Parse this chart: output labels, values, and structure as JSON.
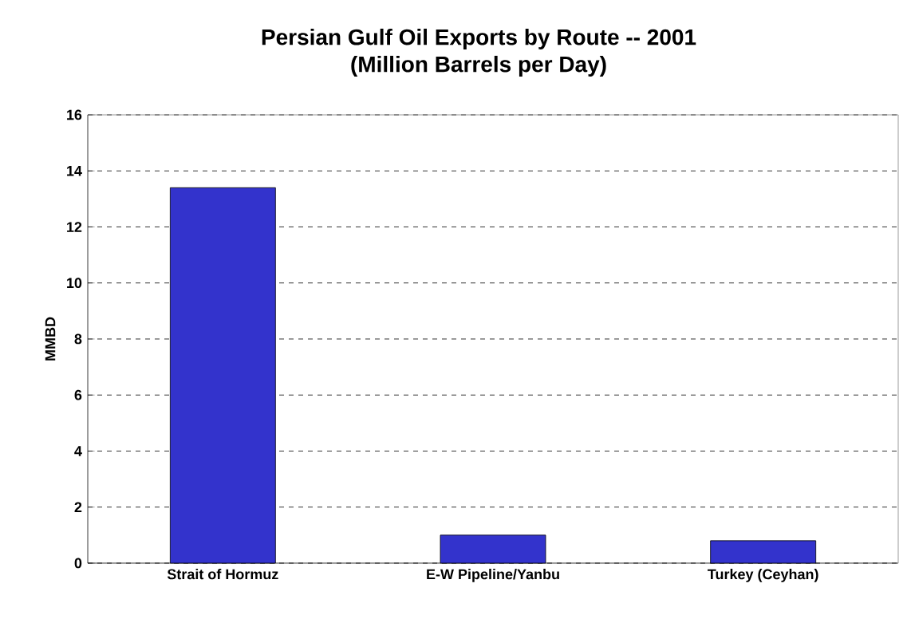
{
  "chart_data": {
    "type": "bar",
    "title": "Persian Gulf Oil Exports by Route -- 2001",
    "subtitle": "(Million Barrels per Day)",
    "ylabel": "MMBD",
    "categories": [
      "Strait of Hormuz",
      "E-W Pipeline/Yanbu",
      "Turkey (Ceyhan)"
    ],
    "values": [
      13.4,
      1.0,
      0.8
    ],
    "color": "#3333cc",
    "ylim": [
      0,
      16
    ],
    "yticks": [
      0,
      2,
      4,
      6,
      8,
      10,
      12,
      14,
      16
    ],
    "grid": "y"
  }
}
